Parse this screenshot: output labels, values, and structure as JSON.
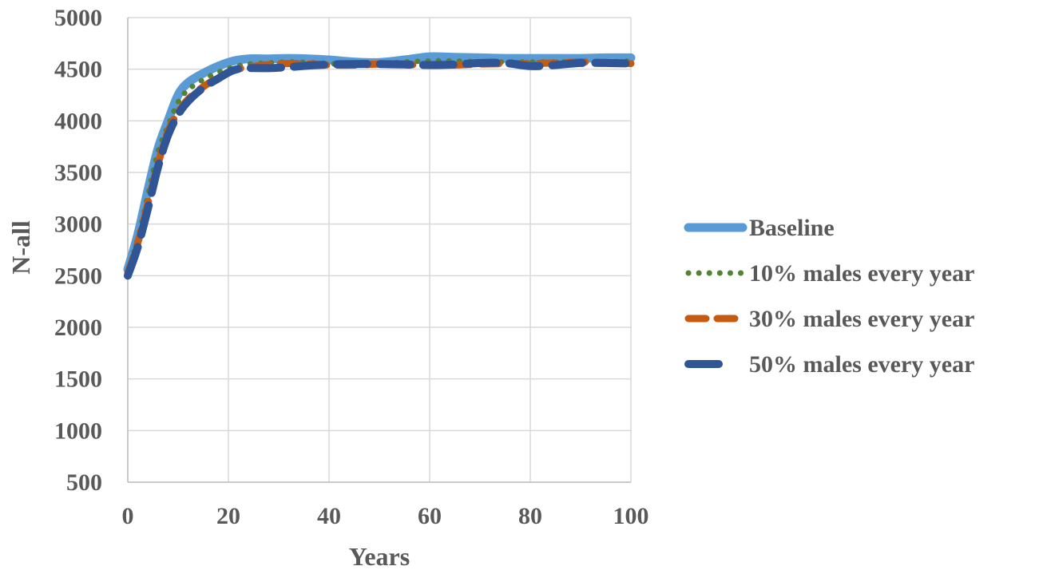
{
  "chart_data": {
    "type": "line",
    "title": "",
    "xlabel": "Years",
    "ylabel": "N-all",
    "xlim": [
      0,
      100
    ],
    "ylim": [
      500,
      5000
    ],
    "xticks": [
      0,
      20,
      40,
      60,
      80,
      100
    ],
    "yticks": [
      500,
      1000,
      1500,
      2000,
      2500,
      3000,
      3500,
      4000,
      4500,
      5000
    ],
    "grid": true,
    "legend_position": "right",
    "series": [
      {
        "name": "Baseline",
        "color": "#5b9bd5",
        "style": "solid",
        "x": [
          0,
          2,
          4,
          6,
          8,
          10,
          12,
          15,
          18,
          21,
          24,
          28,
          32,
          36,
          40,
          45,
          50,
          55,
          60,
          65,
          70,
          75,
          80,
          85,
          90,
          95,
          100
        ],
        "y": [
          2560,
          2900,
          3330,
          3730,
          4000,
          4250,
          4370,
          4460,
          4530,
          4580,
          4600,
          4600,
          4605,
          4600,
          4590,
          4570,
          4565,
          4590,
          4620,
          4615,
          4610,
          4605,
          4605,
          4605,
          4605,
          4610,
          4610
        ]
      },
      {
        "name": "10% males every year",
        "color": "#548235",
        "style": "dotted",
        "x": [
          0,
          2,
          4,
          6,
          8,
          10,
          12,
          15,
          18,
          21,
          24,
          28,
          32,
          36,
          40,
          45,
          50,
          55,
          60,
          65,
          70,
          75,
          80,
          85,
          90,
          95,
          100
        ],
        "y": [
          2540,
          2860,
          3280,
          3700,
          3950,
          4180,
          4300,
          4400,
          4470,
          4520,
          4550,
          4560,
          4570,
          4565,
          4555,
          4545,
          4550,
          4570,
          4580,
          4580,
          4570,
          4570,
          4570,
          4570,
          4570,
          4570,
          4580
        ]
      },
      {
        "name": "30% males every year",
        "color": "#c55a11",
        "style": "dashed",
        "x": [
          0,
          2,
          4,
          6,
          8,
          10,
          12,
          15,
          18,
          21,
          24,
          28,
          32,
          36,
          40,
          45,
          50,
          55,
          60,
          65,
          70,
          75,
          80,
          85,
          90,
          95,
          100
        ],
        "y": [
          2520,
          2820,
          3200,
          3580,
          3900,
          4080,
          4210,
          4330,
          4420,
          4490,
          4520,
          4545,
          4555,
          4550,
          4540,
          4540,
          4550,
          4545,
          4540,
          4540,
          4550,
          4555,
          4555,
          4560,
          4570,
          4565,
          4555
        ]
      },
      {
        "name": "50% males every year",
        "color": "#2f5597",
        "style": "longdash",
        "x": [
          0,
          2,
          4,
          6,
          8,
          10,
          12,
          15,
          18,
          21,
          24,
          28,
          32,
          36,
          40,
          45,
          50,
          55,
          60,
          65,
          70,
          75,
          80,
          85,
          90,
          95,
          100
        ],
        "y": [
          2500,
          2780,
          3150,
          3550,
          3860,
          4060,
          4190,
          4320,
          4410,
          4490,
          4510,
          4510,
          4520,
          4535,
          4545,
          4550,
          4550,
          4545,
          4540,
          4545,
          4560,
          4560,
          4530,
          4540,
          4560,
          4560,
          4555
        ]
      }
    ]
  }
}
